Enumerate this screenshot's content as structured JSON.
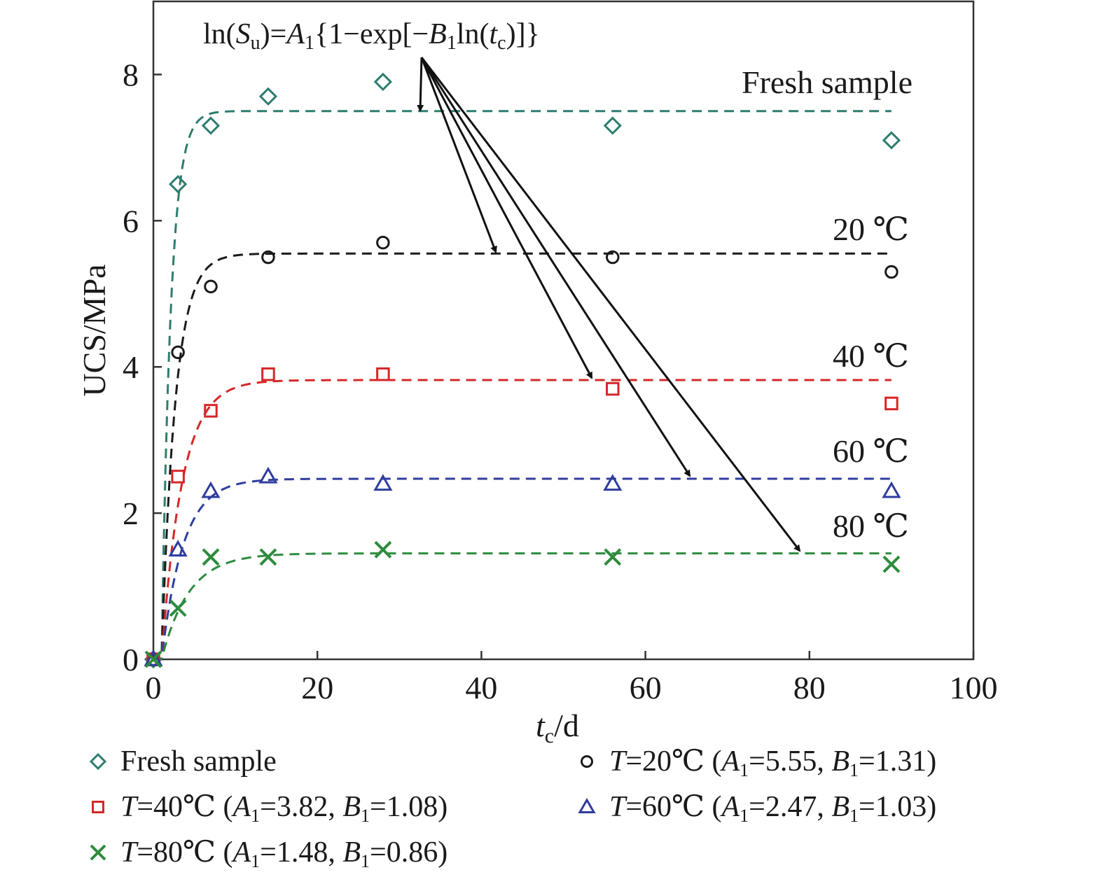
{
  "chart_data": {
    "type": "scatter",
    "xlabel": {
      "main": "t",
      "sub": "c",
      "unit": "/d"
    },
    "ylabel": "UCS/MPa",
    "xlim": [
      0,
      100
    ],
    "ylim": [
      0,
      9
    ],
    "xticks": [
      0,
      20,
      40,
      60,
      80,
      100
    ],
    "yticks": [
      0,
      2,
      4,
      6,
      8
    ],
    "grid": false,
    "legend_position": "bottom",
    "formula": {
      "prefix": "ln(",
      "var1": "S",
      "var1_sub": "u",
      "mid": ")=",
      "coefA": "A",
      "coefA_sub": "1",
      "body": "{1−exp[−",
      "coefB": "B",
      "coefB_sub": "1",
      "body2": "ln(",
      "var2": "t",
      "var2_sub": "c",
      "suffix": ")]}"
    },
    "series": [
      {
        "key": "fresh",
        "legend": "Fresh sample",
        "curve_label": "Fresh sample",
        "marker": "diamond",
        "color": "#2e7d6e",
        "x": [
          0,
          3,
          7,
          14,
          28,
          56,
          90
        ],
        "y": [
          0,
          6.5,
          7.3,
          7.7,
          7.9,
          7.3,
          7.1
        ],
        "fit_plateau": 7.5,
        "fit_k": 0.9
      },
      {
        "key": "t20",
        "legend": {
          "T": "T",
          "temp": "=20℃ (",
          "A": "A",
          "A_sub": "1",
          "A_val": "=5.55, ",
          "B": "B",
          "B_sub": "1",
          "B_val": "=1.31)"
        },
        "curve_label": "20 ℃",
        "marker": "circle",
        "color": "#1a1a1a",
        "x": [
          0,
          3,
          7,
          14,
          28,
          56,
          90
        ],
        "y": [
          0,
          4.2,
          5.1,
          5.5,
          5.7,
          5.5,
          5.3
        ],
        "fit_plateau": 5.55,
        "fit_k": 0.6
      },
      {
        "key": "t40",
        "legend": {
          "T": "T",
          "temp": "=40℃ (",
          "A": "A",
          "A_sub": "1",
          "A_val": "=3.82, ",
          "B": "B",
          "B_sub": "1",
          "B_val": "=1.08)"
        },
        "curve_label": "40 ℃",
        "marker": "square",
        "color": "#d62728",
        "x": [
          0,
          3,
          7,
          14,
          28,
          56,
          90
        ],
        "y": [
          0,
          2.5,
          3.4,
          3.9,
          3.9,
          3.7,
          3.5
        ],
        "fit_plateau": 3.82,
        "fit_k": 0.4
      },
      {
        "key": "t60",
        "legend": {
          "T": "T",
          "temp": "=60℃ (",
          "A": "A",
          "A_sub": "1",
          "A_val": "=2.47, ",
          "B": "B",
          "B_sub": "1",
          "B_val": "=1.03)"
        },
        "curve_label": "60 ℃",
        "marker": "triangle",
        "color": "#2f3d9e",
        "x": [
          0,
          3,
          7,
          14,
          28,
          56,
          90
        ],
        "y": [
          0,
          1.5,
          2.3,
          2.5,
          2.4,
          2.4,
          2.3
        ],
        "fit_plateau": 2.47,
        "fit_k": 0.38
      },
      {
        "key": "t80",
        "legend": {
          "T": "T",
          "temp": "=80℃ (",
          "A": "A",
          "A_sub": "1",
          "A_val": "=1.48, ",
          "B": "B",
          "B_sub": "1",
          "B_val": "=0.86)"
        },
        "curve_label": "80 ℃",
        "marker": "cross",
        "color": "#2e8b3e",
        "x": [
          0,
          3,
          7,
          14,
          28,
          56,
          90
        ],
        "y": [
          0,
          0.7,
          1.4,
          1.4,
          1.5,
          1.4,
          1.3
        ],
        "fit_plateau": 1.45,
        "fit_k": 0.3
      }
    ]
  }
}
